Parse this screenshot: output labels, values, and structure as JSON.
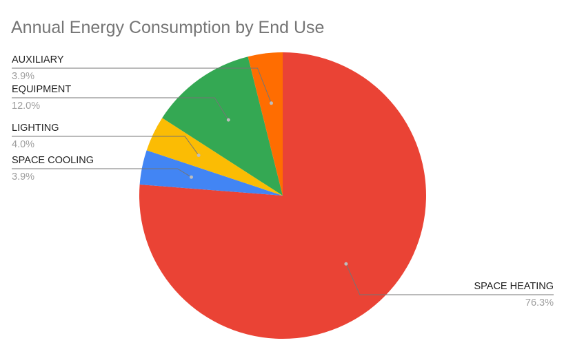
{
  "chart_data": {
    "type": "pie",
    "title": "Annual Energy Consumption by End Use",
    "legend": "none",
    "slices": [
      {
        "label": "SPACE HEATING",
        "value": 76.3,
        "display": "76.3%",
        "color": "#ea4335"
      },
      {
        "label": "SPACE COOLING",
        "value": 3.9,
        "display": "3.9%",
        "color": "#4285f4"
      },
      {
        "label": "LIGHTING",
        "value": 4.0,
        "display": "4.0%",
        "color": "#fbbc04"
      },
      {
        "label": "EQUIPMENT",
        "value": 12.0,
        "display": "12.0%",
        "color": "#34a853"
      },
      {
        "label": "AUXILIARY",
        "value": 3.9,
        "display": "3.9%",
        "color": "#ff6d01"
      }
    ]
  }
}
